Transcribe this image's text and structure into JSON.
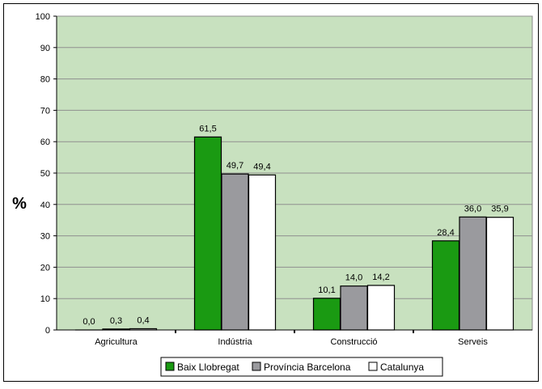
{
  "chart_data": {
    "type": "bar",
    "title": "",
    "xlabel": "",
    "ylabel": "%",
    "ylim": [
      0,
      100
    ],
    "yticks": [
      0,
      10,
      20,
      30,
      40,
      50,
      60,
      70,
      80,
      90,
      100
    ],
    "grid": true,
    "legend_position": "bottom",
    "categories": [
      "Agricultura",
      "Indústria",
      "Construcció",
      "Serveis"
    ],
    "series": [
      {
        "name": "Baix Llobregat",
        "color": "#1a9a12",
        "values": [
          0.0,
          61.5,
          10.1,
          28.4
        ],
        "labels": [
          "0,0",
          "61,5",
          "10,1",
          "28,4"
        ]
      },
      {
        "name": "Província Barcelona",
        "color": "#9a9a9e",
        "values": [
          0.3,
          49.7,
          14.0,
          36.0
        ],
        "labels": [
          "0,3",
          "49,7",
          "14,0",
          "36,0"
        ]
      },
      {
        "name": "Catalunya",
        "color": "#ffffff",
        "values": [
          0.4,
          49.4,
          14.2,
          35.9
        ],
        "labels": [
          "0,4",
          "49,4",
          "14,2",
          "35,9"
        ]
      }
    ],
    "colors": {
      "plot_background": "#c8e1bf",
      "outline": "#000000"
    }
  }
}
